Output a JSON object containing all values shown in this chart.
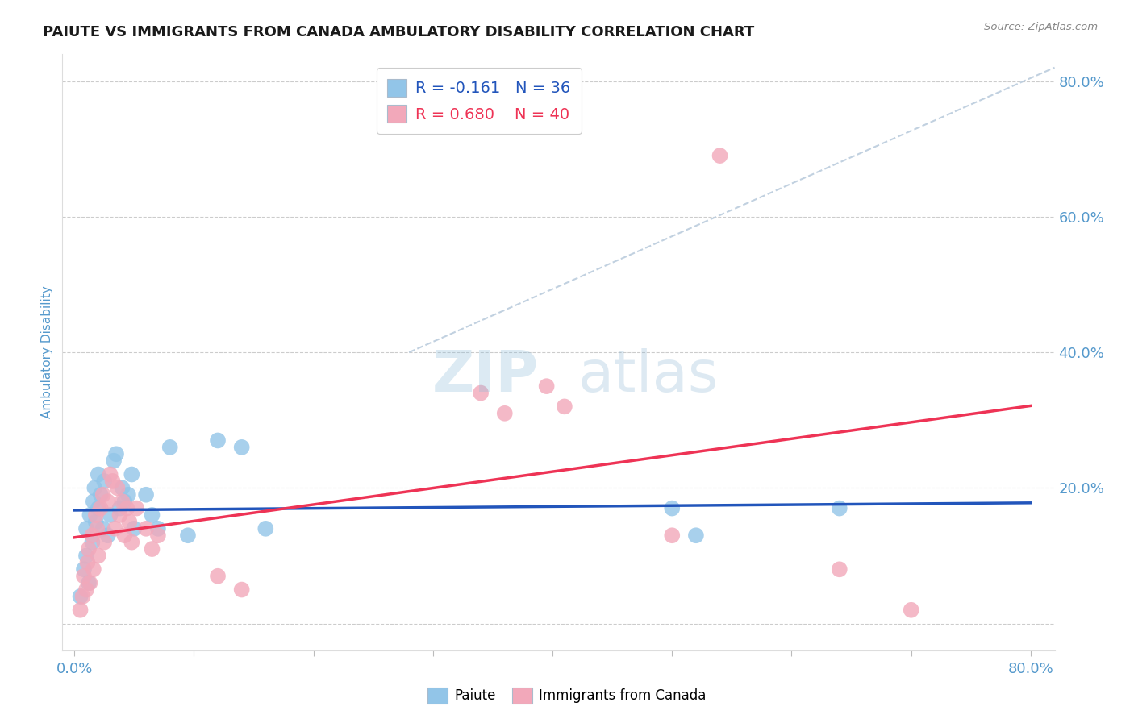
{
  "title": "PAIUTE VS IMMIGRANTS FROM CANADA AMBULATORY DISABILITY CORRELATION CHART",
  "source": "Source: ZipAtlas.com",
  "ylabel": "Ambulatory Disability",
  "xlim": [
    -0.01,
    0.82
  ],
  "ylim": [
    -0.04,
    0.84
  ],
  "paiute_color": "#92C5E8",
  "canada_color": "#F2A8BA",
  "paiute_line_color": "#2255BB",
  "canada_line_color": "#EE3355",
  "diag_line_color": "#BBCCDD",
  "background_color": "#FFFFFF",
  "grid_color": "#CCCCCC",
  "title_color": "#1A1A1A",
  "axis_label_color": "#5599CC",
  "watermark_text": "ZIPatlas",
  "legend_r1": "R = -0.161   N = 36",
  "legend_r2": "R = 0.680    N = 40",
  "paiute_scatter": [
    [
      0.005,
      0.04
    ],
    [
      0.008,
      0.08
    ],
    [
      0.01,
      0.1
    ],
    [
      0.01,
      0.14
    ],
    [
      0.012,
      0.06
    ],
    [
      0.013,
      0.16
    ],
    [
      0.015,
      0.12
    ],
    [
      0.016,
      0.18
    ],
    [
      0.017,
      0.2
    ],
    [
      0.018,
      0.15
    ],
    [
      0.02,
      0.17
    ],
    [
      0.02,
      0.22
    ],
    [
      0.022,
      0.19
    ],
    [
      0.024,
      0.14
    ],
    [
      0.025,
      0.21
    ],
    [
      0.028,
      0.13
    ],
    [
      0.03,
      0.16
    ],
    [
      0.033,
      0.24
    ],
    [
      0.035,
      0.25
    ],
    [
      0.038,
      0.17
    ],
    [
      0.04,
      0.2
    ],
    [
      0.042,
      0.18
    ],
    [
      0.045,
      0.19
    ],
    [
      0.048,
      0.22
    ],
    [
      0.05,
      0.14
    ],
    [
      0.06,
      0.19
    ],
    [
      0.065,
      0.16
    ],
    [
      0.07,
      0.14
    ],
    [
      0.08,
      0.26
    ],
    [
      0.095,
      0.13
    ],
    [
      0.12,
      0.27
    ],
    [
      0.14,
      0.26
    ],
    [
      0.16,
      0.14
    ],
    [
      0.5,
      0.17
    ],
    [
      0.52,
      0.13
    ],
    [
      0.64,
      0.17
    ]
  ],
  "canada_scatter": [
    [
      0.005,
      0.02
    ],
    [
      0.007,
      0.04
    ],
    [
      0.008,
      0.07
    ],
    [
      0.01,
      0.05
    ],
    [
      0.011,
      0.09
    ],
    [
      0.012,
      0.11
    ],
    [
      0.013,
      0.06
    ],
    [
      0.015,
      0.13
    ],
    [
      0.016,
      0.08
    ],
    [
      0.018,
      0.16
    ],
    [
      0.019,
      0.14
    ],
    [
      0.02,
      0.1
    ],
    [
      0.022,
      0.17
    ],
    [
      0.024,
      0.19
    ],
    [
      0.025,
      0.12
    ],
    [
      0.028,
      0.18
    ],
    [
      0.03,
      0.22
    ],
    [
      0.032,
      0.21
    ],
    [
      0.034,
      0.14
    ],
    [
      0.036,
      0.2
    ],
    [
      0.038,
      0.16
    ],
    [
      0.04,
      0.18
    ],
    [
      0.042,
      0.13
    ],
    [
      0.044,
      0.17
    ],
    [
      0.046,
      0.15
    ],
    [
      0.048,
      0.12
    ],
    [
      0.052,
      0.17
    ],
    [
      0.06,
      0.14
    ],
    [
      0.065,
      0.11
    ],
    [
      0.07,
      0.13
    ],
    [
      0.12,
      0.07
    ],
    [
      0.14,
      0.05
    ],
    [
      0.34,
      0.34
    ],
    [
      0.36,
      0.31
    ],
    [
      0.395,
      0.35
    ],
    [
      0.41,
      0.32
    ],
    [
      0.5,
      0.13
    ],
    [
      0.54,
      0.69
    ],
    [
      0.64,
      0.08
    ],
    [
      0.7,
      0.02
    ]
  ]
}
